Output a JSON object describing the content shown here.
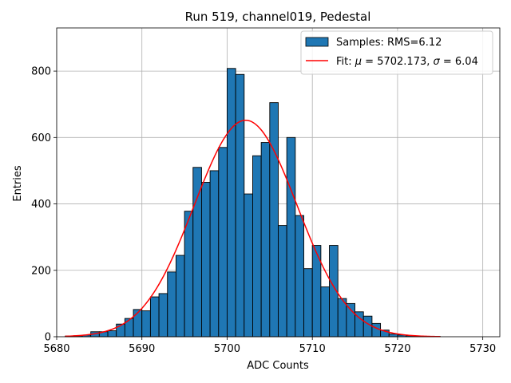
{
  "chart_data": {
    "type": "bar",
    "title": "Run 519, channel019, Pedestal",
    "xlabel": "ADC Counts",
    "ylabel": "Entries",
    "xlim": [
      5680,
      5732
    ],
    "ylim": [
      0,
      930
    ],
    "xticks": [
      5680,
      5690,
      5700,
      5710,
      5720,
      5730
    ],
    "yticks": [
      0,
      200,
      400,
      600,
      800
    ],
    "grid": true,
    "legend_position": "top-right",
    "bar_color": "#1f77b4",
    "fit_color": "#ff0000",
    "histogram": {
      "name": "Samples: RMS=6.12",
      "bin_width": 1,
      "bin_starts": [
        5681,
        5682,
        5683,
        5684,
        5685,
        5686,
        5687,
        5688,
        5689,
        5690,
        5691,
        5692,
        5693,
        5694,
        5695,
        5696,
        5697,
        5698,
        5699,
        5700,
        5701,
        5702,
        5703,
        5704,
        5705,
        5706,
        5707,
        5708,
        5709,
        5710,
        5711,
        5712,
        5713,
        5714,
        5715,
        5716,
        5717,
        5718,
        5719,
        5720,
        5721,
        5722,
        5723,
        5724
      ],
      "counts": [
        2,
        3,
        5,
        15,
        15,
        18,
        38,
        55,
        82,
        78,
        120,
        130,
        195,
        245,
        378,
        510,
        465,
        500,
        570,
        808,
        790,
        430,
        545,
        585,
        705,
        335,
        600,
        365,
        205,
        275,
        150,
        275,
        115,
        100,
        75,
        62,
        40,
        20,
        8,
        5,
        3,
        2,
        1,
        1
      ]
    },
    "fit": {
      "name": "Fit: μ = 5702.173, σ = 6.04",
      "label_parts": [
        "Fit: ",
        "μ",
        " = 5702.173, ",
        "σ",
        " = 6.04"
      ],
      "mu": 5702.173,
      "sigma": 6.04,
      "amplitude": 652,
      "x_range": [
        5681,
        5725
      ]
    }
  }
}
